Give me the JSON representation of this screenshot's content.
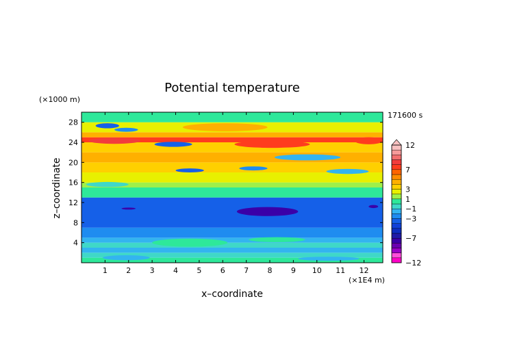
{
  "chart_data": {
    "type": "heatmap",
    "title": "Potential temperature",
    "xlabel": "x–coordinate",
    "ylabel": "z–coordinate",
    "x_unit": "(×1E4 m)",
    "y_unit": "(×1000 m)",
    "time_label": "171600 s",
    "xlim": [
      0,
      12.8
    ],
    "ylim": [
      0,
      30
    ],
    "x_ticks": [
      1,
      2,
      3,
      4,
      5,
      6,
      7,
      8,
      9,
      10,
      11,
      12
    ],
    "x_tick_labels": [
      "1",
      "2",
      "3",
      "4",
      "5",
      "6",
      "7",
      "8",
      "9",
      "10",
      "11",
      "12"
    ],
    "y_ticks": [
      4,
      8,
      12,
      16,
      20,
      24,
      28
    ],
    "y_tick_labels": [
      "4",
      "8",
      "12",
      "16",
      "20",
      "24",
      "28"
    ],
    "colorbar": {
      "levels": [
        -12,
        -11,
        -10,
        -9,
        -8,
        -7,
        -6,
        -5,
        -4,
        -3,
        -2,
        -1,
        0,
        1,
        2,
        3,
        4,
        5,
        6,
        7,
        8,
        9,
        10,
        11,
        12
      ],
      "colors": [
        "#ff00c8",
        "#ff4fd9",
        "#9b00c8",
        "#6a00b0",
        "#3a00a8",
        "#1f1aa8",
        "#0d2ec0",
        "#1040d8",
        "#1560e8",
        "#1f8cf0",
        "#33b4f0",
        "#3fd8c8",
        "#2ee89a",
        "#9ef04a",
        "#e8f000",
        "#ffd000",
        "#ffb000",
        "#ff8c00",
        "#ff6400",
        "#ff3c1e",
        "#f23c3c",
        "#f26e6e",
        "#f59a9a",
        "#f8c0c0"
      ],
      "tick_values": [
        12,
        7,
        3,
        1,
        -1,
        -3,
        -7,
        -12
      ],
      "tick_labels": [
        "12",
        "7",
        "3",
        "1",
        "−1",
        "−3",
        "−7",
        "−12"
      ],
      "extend": "max"
    },
    "layers": [
      {
        "z_range": [
          0,
          1
        ],
        "value": 0.3
      },
      {
        "z_range": [
          1,
          2
        ],
        "value": -0.8
      },
      {
        "z_range": [
          2,
          3
        ],
        "value": -1.6
      },
      {
        "z_range": [
          3,
          4
        ],
        "value": -0.5
      },
      {
        "z_range": [
          4,
          5
        ],
        "value": -1.7
      },
      {
        "z_range": [
          5,
          7
        ],
        "value": -2.4
      },
      {
        "z_range": [
          7,
          13
        ],
        "value": -3.6
      },
      {
        "z_range": [
          13,
          15
        ],
        "value": 0.6
      },
      {
        "z_range": [
          15,
          16
        ],
        "value": 1.6
      },
      {
        "z_range": [
          16,
          18
        ],
        "value": 2.5
      },
      {
        "z_range": [
          18,
          20
        ],
        "value": 3.5
      },
      {
        "z_range": [
          20,
          22
        ],
        "value": 4.8
      },
      {
        "z_range": [
          22,
          24
        ],
        "value": 3.0
      },
      {
        "z_range": [
          24,
          25
        ],
        "value": 7.2
      },
      {
        "z_range": [
          25,
          26
        ],
        "value": 4.0
      },
      {
        "z_range": [
          26,
          28
        ],
        "value": 2.2
      },
      {
        "z_range": [
          28,
          30
        ],
        "value": 0.6
      }
    ],
    "features": [
      {
        "x_center": 6.1,
        "z_center": 27.0,
        "x_radius": 1.8,
        "z_radius": 0.8,
        "value": 4.5
      },
      {
        "x_center": 1.1,
        "z_center": 27.3,
        "x_radius": 0.5,
        "z_radius": 0.5,
        "value": -3.5
      },
      {
        "x_center": 1.9,
        "z_center": 26.5,
        "x_radius": 0.5,
        "z_radius": 0.4,
        "value": -2.5
      },
      {
        "x_center": 1.4,
        "z_center": 24.3,
        "x_radius": 1.1,
        "z_radius": 0.6,
        "value": 8.5
      },
      {
        "x_center": 3.9,
        "z_center": 23.6,
        "x_radius": 0.8,
        "z_radius": 0.5,
        "value": -3.5
      },
      {
        "x_center": 8.1,
        "z_center": 23.6,
        "x_radius": 1.6,
        "z_radius": 0.7,
        "value": 7.5
      },
      {
        "x_center": 12.2,
        "z_center": 24.3,
        "x_radius": 0.6,
        "z_radius": 0.7,
        "value": 7.2
      },
      {
        "x_center": 9.6,
        "z_center": 21.0,
        "x_radius": 1.4,
        "z_radius": 0.6,
        "value": -1.8
      },
      {
        "x_center": 4.6,
        "z_center": 18.4,
        "x_radius": 0.6,
        "z_radius": 0.4,
        "value": -3.5
      },
      {
        "x_center": 7.3,
        "z_center": 18.8,
        "x_radius": 0.6,
        "z_radius": 0.4,
        "value": -2.5
      },
      {
        "x_center": 11.3,
        "z_center": 18.2,
        "x_radius": 0.9,
        "z_radius": 0.5,
        "value": -1.5
      },
      {
        "x_center": 1.1,
        "z_center": 15.6,
        "x_radius": 0.9,
        "z_radius": 0.5,
        "value": -0.6
      },
      {
        "x_center": 7.9,
        "z_center": 10.2,
        "x_radius": 1.3,
        "z_radius": 0.9,
        "value": -7.2
      },
      {
        "x_center": 2.0,
        "z_center": 10.8,
        "x_radius": 0.3,
        "z_radius": 0.2,
        "value": -7.2
      },
      {
        "x_center": 12.4,
        "z_center": 11.2,
        "x_radius": 0.2,
        "z_radius": 0.3,
        "value": -7.2
      },
      {
        "x_center": 4.6,
        "z_center": 4.0,
        "x_radius": 1.6,
        "z_radius": 0.8,
        "value": 0.6
      },
      {
        "x_center": 8.3,
        "z_center": 4.6,
        "x_radius": 1.2,
        "z_radius": 0.5,
        "value": 0.4
      },
      {
        "x_center": 1.9,
        "z_center": 1.0,
        "x_radius": 1.0,
        "z_radius": 0.5,
        "value": -1.8
      },
      {
        "x_center": 10.5,
        "z_center": 0.8,
        "x_radius": 1.3,
        "z_radius": 0.4,
        "value": -1.6
      }
    ]
  }
}
